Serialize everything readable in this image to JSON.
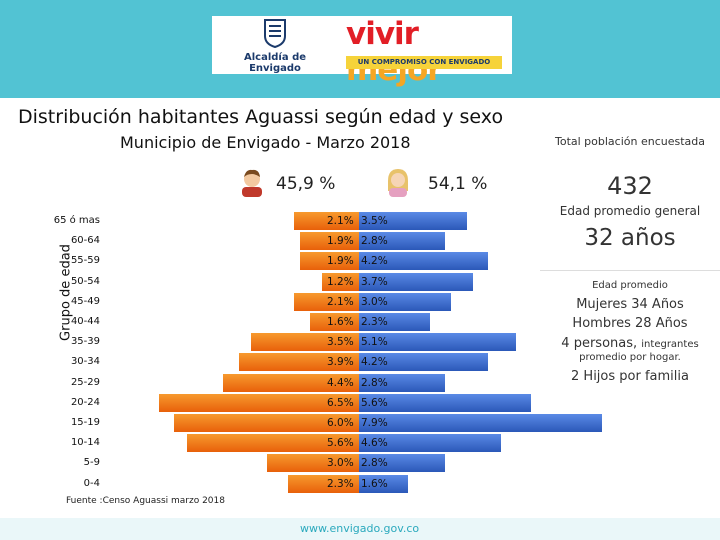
{
  "header": {
    "alcaldia": "Alcaldía de Envigado",
    "brand_vivir": "vivir",
    "brand_mejor": "mejor",
    "slogan": "UN COMPROMISO CON ENVIGADO"
  },
  "colors": {
    "male": "#f07a12",
    "female": "#3b6fd0",
    "banner": "#52c3d3"
  },
  "male_pct": "45,9 %",
  "female_pct": "54,1 %",
  "side": {
    "total_label": "Total población encuestada",
    "total_value": "432",
    "age_label": "Edad promedio general",
    "age_value": "32 años",
    "avg_label": "Edad promedio",
    "women": "Mujeres 34 Años",
    "men": "Hombres 28 Años",
    "persons_main": "4 personas,",
    "persons_rest": "integrantes",
    "persons_line2": "promedio por hogar.",
    "children": "2 Hijos por familia"
  },
  "source": "Fuente :Censo Aguassi marzo 2018",
  "footer_url": "www.envigado.gov.co",
  "chart_data": {
    "type": "bar",
    "subtype": "population-pyramid",
    "title": "Distribución habitantes Aguassi según edad y sexo",
    "subtitle": "Municipio de Envigado - Marzo 2018",
    "ylabel": "Grupo de edad",
    "categories": [
      "65 ó mas",
      "60-64",
      "55-59",
      "50-54",
      "45-49",
      "40-44",
      "35-39",
      "30-34",
      "25-29",
      "20-24",
      "15-19",
      "10-14",
      "5-9",
      "0-4"
    ],
    "series": [
      {
        "name": "Hombres",
        "values": [
          2.1,
          1.9,
          1.9,
          1.2,
          2.1,
          1.6,
          3.5,
          3.9,
          4.4,
          6.5,
          6.0,
          5.6,
          3.0,
          2.3
        ],
        "labels": [
          "2.1%",
          "1.9%",
          "1.9%",
          "1.2%",
          "2.1%",
          "1.6%",
          "3.5%",
          "3.9%",
          "4.4%",
          "6.5%",
          "6.0%",
          "5.6%",
          "3.0%",
          "2.3%"
        ]
      },
      {
        "name": "Mujeres",
        "values": [
          3.5,
          2.8,
          4.2,
          3.7,
          3.0,
          2.3,
          5.1,
          4.2,
          2.8,
          5.6,
          7.9,
          4.6,
          2.8,
          1.6
        ],
        "labels": [
          "3.5%",
          "2.8%",
          "4.2%",
          "3.7%",
          "3.0%",
          "2.3%",
          "5.1%",
          "4.2%",
          "2.8%",
          "5.6%",
          "7.9%",
          "4.6%",
          "2.8%",
          "1.6%"
        ]
      }
    ]
  }
}
